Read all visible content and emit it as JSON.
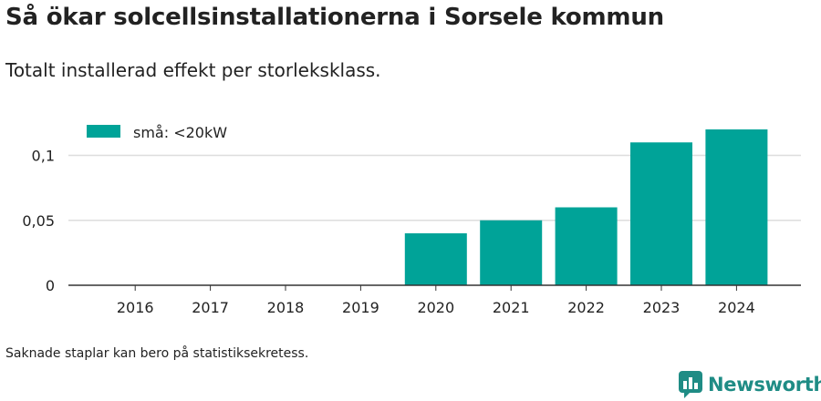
{
  "header": {
    "title": "Så ökar solcellsinstallationerna i Sorsele kommun",
    "subtitle": "Totalt installerad effekt per storleksklass."
  },
  "footer": {
    "note": "Saknade staplar kan bero på statistiksekretess.",
    "brand": "Newsworthy",
    "brand_icon": "bar-chart-speech-bubble-icon"
  },
  "colors": {
    "bar": "#00a398",
    "grid": "#dddddd",
    "axis": "#333333",
    "brand": "#1f8c85"
  },
  "chart_data": {
    "type": "bar",
    "categories": [
      "2016",
      "2017",
      "2018",
      "2019",
      "2020",
      "2021",
      "2022",
      "2023",
      "2024"
    ],
    "series": [
      {
        "name": "små: <20kW",
        "values": [
          0,
          0,
          0,
          0,
          0.04,
          0.05,
          0.06,
          0.11,
          0.12
        ]
      }
    ],
    "ylim": [
      0,
      0.12
    ],
    "yticks": [
      0,
      0.05,
      0.1
    ],
    "ytick_labels": [
      "0",
      "0,05",
      "0,1"
    ],
    "xlabel": "",
    "ylabel": "",
    "grid": true,
    "legend": "top-left"
  }
}
